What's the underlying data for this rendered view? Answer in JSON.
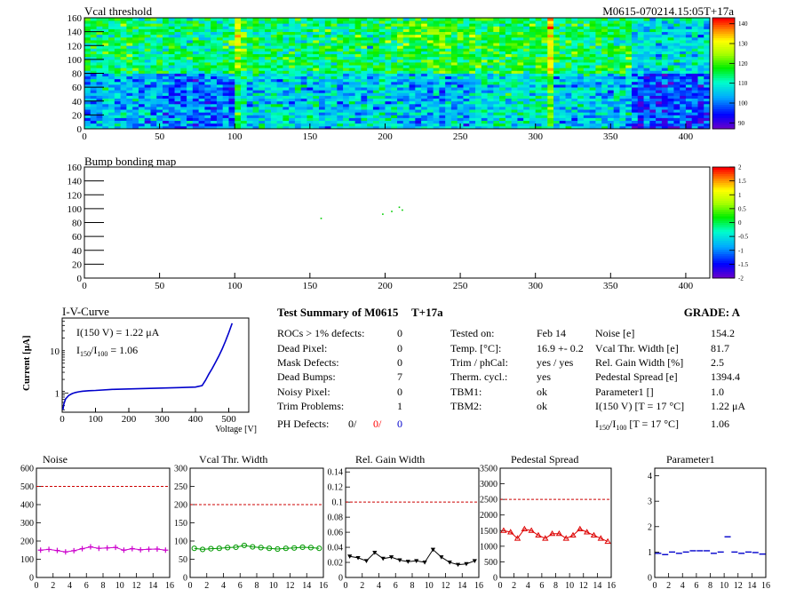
{
  "header": {
    "left_title": "Vcal threshold",
    "right_title": "M0615-070214.15:05T+17a"
  },
  "chart_data": [
    {
      "id": "vcal",
      "type": "heatmap",
      "title": "Vcal threshold",
      "x_ticks": [
        "0",
        "50",
        "100",
        "150",
        "200",
        "250",
        "300",
        "350",
        "400"
      ],
      "y_ticks": [
        "0",
        "20",
        "40",
        "60",
        "80",
        "100",
        "120",
        "140",
        "160"
      ],
      "xlim": [
        0,
        416
      ],
      "ylim": [
        0,
        160
      ],
      "colorbar_ticks": [
        "90",
        "100",
        "110",
        "120",
        "130",
        "140"
      ],
      "colorbar_range": [
        87,
        143
      ],
      "roc_means": [
        [
          115,
          113,
          114,
          114,
          118,
          117,
          115,
          108
        ],
        [
          104,
          100,
          107,
          106,
          104,
          109,
          106,
          97
        ]
      ]
    },
    {
      "id": "bump",
      "type": "heatmap",
      "title": "Bump bonding map",
      "x_ticks": [
        "0",
        "50",
        "100",
        "150",
        "200",
        "250",
        "300",
        "350",
        "400"
      ],
      "y_ticks": [
        "0",
        "20",
        "40",
        "60",
        "80",
        "100",
        "120",
        "140",
        "160"
      ],
      "xlim": [
        0,
        416
      ],
      "ylim": [
        0,
        160
      ],
      "colorbar_ticks": [
        "-2",
        "-1.5",
        "-1",
        "-0.5",
        "0",
        "0.5",
        "1",
        "1.5",
        "2"
      ],
      "colorbar_range": [
        -2,
        2
      ],
      "points": [
        [
          157,
          87
        ],
        [
          198,
          93
        ],
        [
          204,
          97
        ],
        [
          209,
          103
        ],
        [
          211,
          99
        ]
      ]
    },
    {
      "id": "iv",
      "type": "line",
      "title": "I-V-Curve",
      "xlabel": "Voltage [V]",
      "ylabel": "Current [μA]",
      "x_ticks": [
        "0",
        "100",
        "200",
        "300",
        "400",
        "500"
      ],
      "y_ticks": [
        "1",
        "10"
      ],
      "xlim": [
        0,
        560
      ],
      "ylim": [
        0.35,
        60
      ],
      "y_log": true,
      "annotation1": "I(150 V) = 1.22 μA",
      "annotation2_pre": "I",
      "annotation2_sub1": "150",
      "annotation2_mid": "/I",
      "annotation2_sub2": "100",
      "annotation2_post": " = 1.06",
      "series": [
        {
          "x": [
            2,
            5,
            10,
            20,
            30,
            40,
            50,
            60,
            80,
            100,
            150,
            200,
            250,
            300,
            350,
            400,
            420,
            430,
            440,
            450,
            460,
            470,
            480,
            490,
            500,
            510
          ],
          "y": [
            0.4,
            0.55,
            0.72,
            0.88,
            0.97,
            1.03,
            1.07,
            1.1,
            1.13,
            1.15,
            1.22,
            1.25,
            1.28,
            1.31,
            1.34,
            1.38,
            1.5,
            2.0,
            2.8,
            3.8,
            5.3,
            7.5,
            11,
            17,
            27,
            45
          ]
        }
      ]
    },
    {
      "id": "noise",
      "type": "line",
      "title": "Noise",
      "x_ticks": [
        "0",
        "2",
        "4",
        "6",
        "8",
        "10",
        "12",
        "14",
        "16"
      ],
      "y_ticks": [
        "0",
        "100",
        "200",
        "300",
        "400",
        "500",
        "600"
      ],
      "xlim": [
        0,
        16
      ],
      "ylim": [
        0,
        600
      ],
      "threshold": 500,
      "series": [
        {
          "x": [
            0.5,
            1.5,
            2.5,
            3.5,
            4.5,
            5.5,
            6.5,
            7.5,
            8.5,
            9.5,
            10.5,
            11.5,
            12.5,
            13.5,
            14.5,
            15.5
          ],
          "y": [
            150,
            154,
            148,
            140,
            147,
            158,
            168,
            160,
            162,
            165,
            150,
            158,
            152,
            155,
            156,
            150
          ]
        }
      ]
    },
    {
      "id": "vcalwidth",
      "type": "line",
      "title": "Vcal Thr. Width",
      "x_ticks": [
        "0",
        "2",
        "4",
        "6",
        "8",
        "10",
        "12",
        "14",
        "16"
      ],
      "y_ticks": [
        "0",
        "50",
        "100",
        "150",
        "200",
        "250",
        "300"
      ],
      "xlim": [
        0,
        16
      ],
      "ylim": [
        0,
        300
      ],
      "threshold": 200,
      "series": [
        {
          "x": [
            0.5,
            1.5,
            2.5,
            3.5,
            4.5,
            5.5,
            6.5,
            7.5,
            8.5,
            9.5,
            10.5,
            11.5,
            12.5,
            13.5,
            14.5,
            15.5
          ],
          "y": [
            80,
            77,
            79,
            80,
            82,
            83,
            88,
            84,
            82,
            80,
            78,
            80,
            81,
            83,
            82,
            80
          ]
        }
      ]
    },
    {
      "id": "gainwidth",
      "type": "line",
      "title": "Rel. Gain Width",
      "x_ticks": [
        "0",
        "2",
        "4",
        "6",
        "8",
        "10",
        "12",
        "14",
        "16"
      ],
      "y_ticks": [
        "0",
        "0.02",
        "0.04",
        "0.06",
        "0.08",
        "0.1",
        "0.12",
        "0.14"
      ],
      "xlim": [
        0,
        16
      ],
      "ylim": [
        0,
        0.145
      ],
      "threshold": 0.1,
      "series": [
        {
          "x": [
            0.5,
            1.5,
            2.5,
            3.5,
            4.5,
            5.5,
            6.5,
            7.5,
            8.5,
            9.5,
            10.5,
            11.5,
            12.5,
            13.5,
            14.5,
            15.5
          ],
          "y": [
            0.028,
            0.026,
            0.022,
            0.033,
            0.025,
            0.027,
            0.023,
            0.021,
            0.022,
            0.02,
            0.037,
            0.027,
            0.02,
            0.017,
            0.018,
            0.022
          ]
        }
      ]
    },
    {
      "id": "pedestal",
      "type": "line",
      "title": "Pedestal Spread",
      "x_ticks": [
        "0",
        "2",
        "4",
        "6",
        "8",
        "10",
        "12",
        "14",
        "16"
      ],
      "y_ticks": [
        "0",
        "500",
        "1000",
        "1500",
        "2000",
        "2500",
        "3000",
        "3500"
      ],
      "xlim": [
        0,
        16
      ],
      "ylim": [
        0,
        3500
      ],
      "threshold": 2500,
      "series": [
        {
          "x": [
            0.5,
            1.5,
            2.5,
            3.5,
            4.5,
            5.5,
            6.5,
            7.5,
            8.5,
            9.5,
            10.5,
            11.5,
            12.5,
            13.5,
            14.5,
            15.5
          ],
          "y": [
            1500,
            1450,
            1250,
            1550,
            1500,
            1350,
            1250,
            1400,
            1400,
            1250,
            1350,
            1550,
            1450,
            1350,
            1250,
            1150
          ]
        }
      ]
    },
    {
      "id": "param1",
      "type": "scatter",
      "title": "Parameter1",
      "x_ticks": [
        "0",
        "2",
        "4",
        "6",
        "8",
        "10",
        "12",
        "14",
        "16"
      ],
      "y_ticks": [
        "0",
        "1",
        "2",
        "3",
        "4"
      ],
      "xlim": [
        0,
        16
      ],
      "ylim": [
        0,
        4.3
      ],
      "series": [
        {
          "x": [
            0.5,
            1.5,
            2.5,
            3.5,
            4.5,
            5.5,
            6.5,
            7.5,
            8.5,
            9.5,
            10.5,
            11.5,
            12.5,
            13.5,
            14.5,
            15.5
          ],
          "y": [
            0.95,
            0.9,
            1.0,
            0.95,
            1.0,
            1.05,
            1.05,
            1.05,
            0.95,
            1.0,
            1.6,
            1.0,
            0.95,
            1.0,
            0.98,
            0.92
          ]
        }
      ]
    }
  ],
  "summary": {
    "title": "Test Summary of M0615",
    "tag": "T+17a",
    "grade": "GRADE:  A",
    "left": [
      {
        "label": "ROCs > 1% defects:",
        "value": "0"
      },
      {
        "label": "Dead Pixel:",
        "value": "0"
      },
      {
        "label": "Mask Defects:",
        "value": "0"
      },
      {
        "label": "Dead Bumps:",
        "value": "7"
      },
      {
        "label": "Noisy Pixel:",
        "value": "0"
      },
      {
        "label": "Trim Problems:",
        "value": "1"
      }
    ],
    "ph_label": "PH Defects:",
    "ph_values": [
      "0/",
      "0/",
      "0"
    ],
    "ph_colors": [
      "#000000",
      "#ff0000",
      "#0000cc"
    ],
    "middle": [
      {
        "label": "Tested on:",
        "value": "Feb 14"
      },
      {
        "label": "Temp. [°C]:",
        "value": "16.9 +- 0.2"
      },
      {
        "label": "Trim / phCal:",
        "value": "yes / yes"
      },
      {
        "label": "Therm. cycl.:",
        "value": "yes"
      },
      {
        "label": "TBM1:",
        "value": "ok"
      },
      {
        "label": "TBM2:",
        "value": "ok"
      }
    ],
    "right": [
      {
        "label": "Noise [e]",
        "value": "154.2"
      },
      {
        "label": "Vcal Thr. Width [e]",
        "value": "81.7"
      },
      {
        "label": "Rel. Gain Width [%]",
        "value": "2.5"
      },
      {
        "label": "Pedestal Spread [e]",
        "value": "1394.4"
      },
      {
        "label": "Parameter1 []",
        "value": "1.0"
      },
      {
        "label": "I(150 V) [T = 17 °C]",
        "value": "1.22 μA"
      }
    ],
    "ratio_label_pre": "I",
    "ratio_sub1": "150",
    "ratio_mid": "/I",
    "ratio_sub2": "100",
    "ratio_label_post": "  [T = 17 °C]",
    "ratio_value": "1.06"
  },
  "colors": {
    "noise": "#cc00cc",
    "vcalwidth": "#009900",
    "gainwidth": "#000000",
    "pedestal": "#dd0000",
    "param1": "#0000cc",
    "iv": "#0000cc",
    "threshold": "#cc0000"
  }
}
